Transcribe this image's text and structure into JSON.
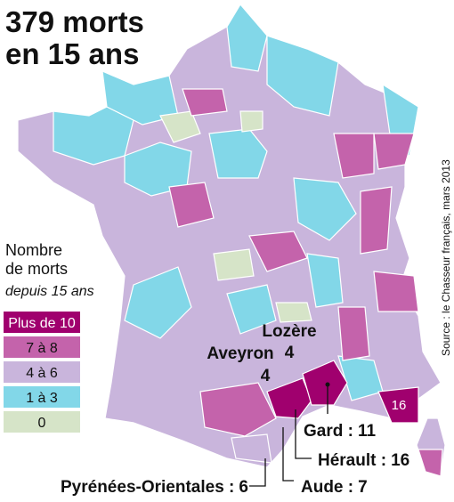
{
  "title": {
    "lines": [
      "379 morts",
      "en 15 ans"
    ]
  },
  "legend": {
    "title_lines": [
      "Nombre",
      "de morts"
    ],
    "subtitle": "depuis 15 ans",
    "items": [
      {
        "label": "Plus de 10",
        "color": "#a0006e"
      },
      {
        "label": "7 à 8",
        "color": "#c463ab"
      },
      {
        "label": "4 à 6",
        "color": "#c9b5dc"
      },
      {
        "label": "1 à 3",
        "color": "#82d7e8"
      },
      {
        "label": "0",
        "color": "#d6e4c8"
      }
    ]
  },
  "labels": [
    {
      "name": "Lozère",
      "value": 4
    },
    {
      "name": "Aveyron",
      "value": 4
    },
    {
      "name": "Gard :",
      "value": 11
    },
    {
      "name": "Hérault :",
      "value": 16
    },
    {
      "name": "Aude :",
      "value": 7
    },
    {
      "name": "Pyrénées-Orientales :",
      "value": 6
    }
  ],
  "map_value": 16,
  "source": "Source : le Chasseur français, mars 2013"
}
